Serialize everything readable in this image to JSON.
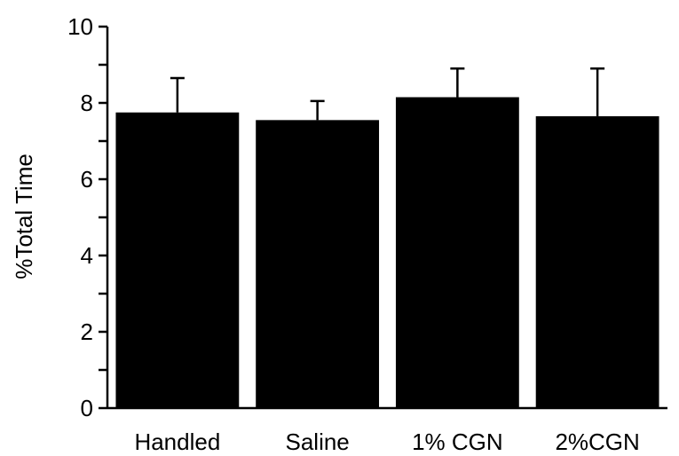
{
  "chart_data": {
    "type": "bar",
    "title": "",
    "xlabel": "",
    "ylabel": "%Total Time",
    "categories": [
      "Handled",
      "Saline",
      "1% CGN",
      "2%CGN"
    ],
    "values": [
      7.75,
      7.55,
      8.15,
      7.65
    ],
    "error_upper": [
      8.65,
      8.05,
      8.9,
      8.9
    ],
    "ylim": [
      0,
      10
    ],
    "yticks": [
      0,
      2,
      4,
      6,
      8,
      10
    ],
    "minor_tick_step": 1,
    "grid": false,
    "legend": "none",
    "bar_color": "#000000"
  }
}
